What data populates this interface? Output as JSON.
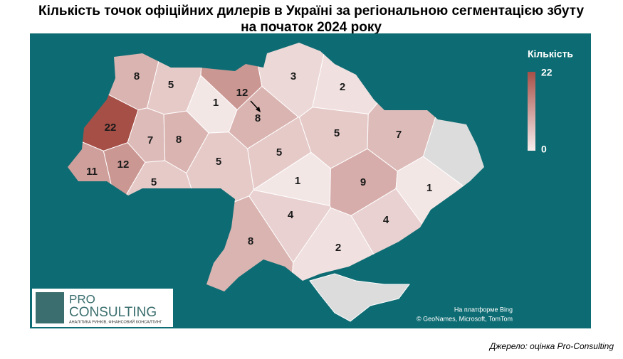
{
  "title": [
    "Кількість точок офіційних дилерів в Україні за регіональною сегментацією збуту",
    "на початок 2024 року"
  ],
  "legend": {
    "title": "Кількість",
    "ticks": [
      22,
      0
    ],
    "colors": [
      "#f7eeee",
      "#a64f47"
    ]
  },
  "regions": [
    {
      "value": 8
    },
    {
      "value": 5
    },
    {
      "value": 1
    },
    {
      "value": 12
    },
    {
      "value": 8
    },
    {
      "value": 3
    },
    {
      "value": 2
    },
    {
      "value": 22
    },
    {
      "value": 7
    },
    {
      "value": 8
    },
    {
      "value": 5
    },
    {
      "value": 7
    },
    {
      "value": 5
    },
    {
      "value": 11
    },
    {
      "value": 12
    },
    {
      "value": 5
    },
    {
      "value": 5
    },
    {
      "value": 1
    },
    {
      "value": 9
    },
    {
      "value": 1
    },
    {
      "value": 4
    },
    {
      "value": 4
    },
    {
      "value": 8
    },
    {
      "value": 2
    }
  ],
  "attribution": [
    "На платформе Bing",
    "© GeoNames, Microsoft, TomTom"
  ],
  "logo": {
    "line1": "PRO",
    "line2": "CONSULTING",
    "tagline": "АНАЛІТИКА РИНКІВ, ФІНАНСОВИЙ КОНСАЛТИНГ"
  },
  "source": "Джерело: оцінка Pro-Consulting"
}
